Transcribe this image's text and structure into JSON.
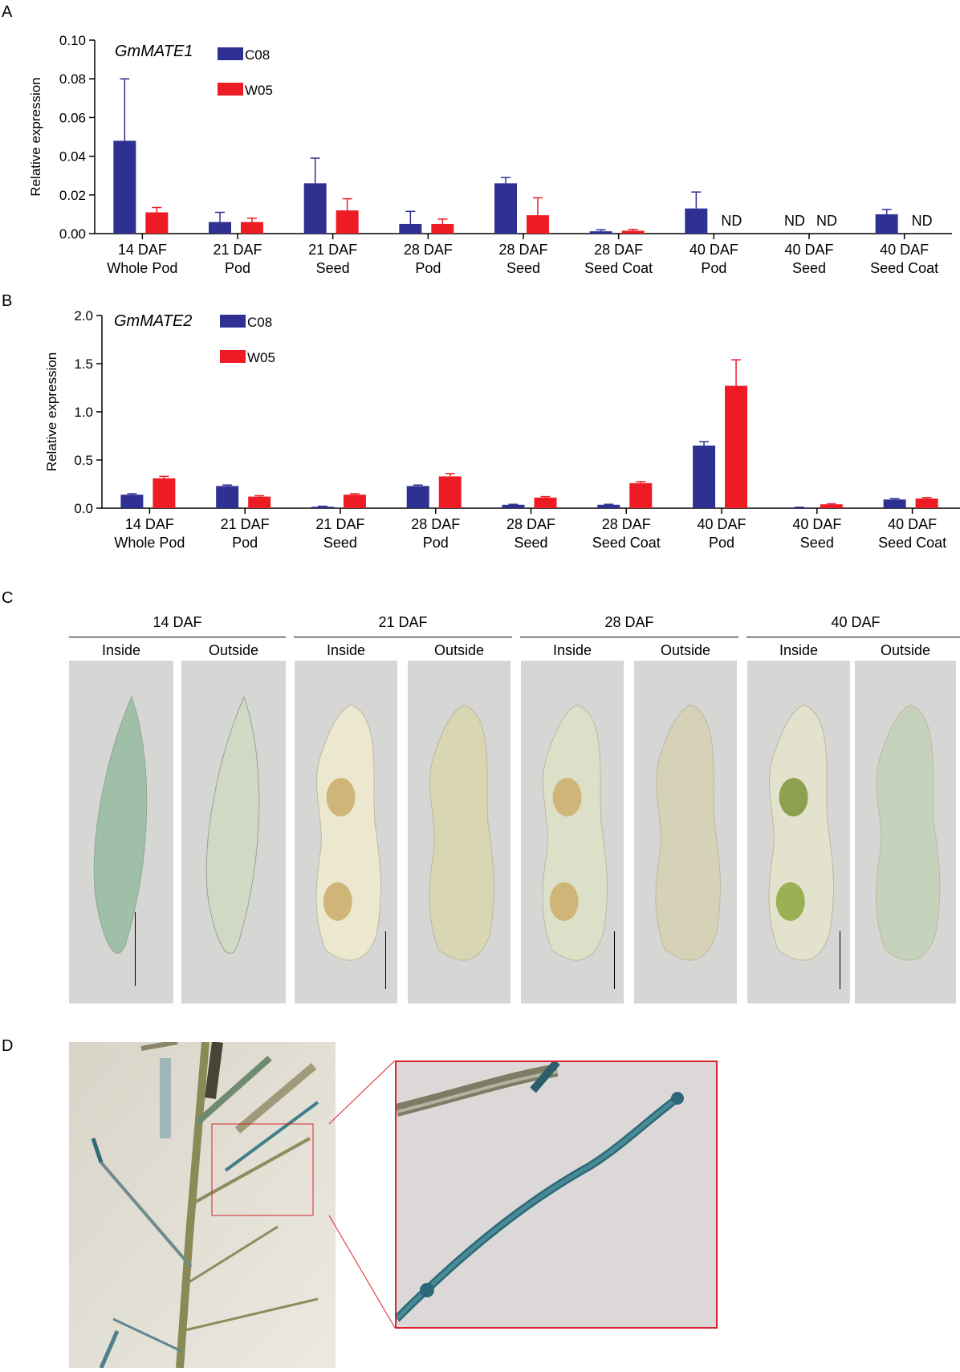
{
  "panels": {
    "a": "A",
    "b": "B",
    "c": "C",
    "d": "D"
  },
  "chart_data": [
    {
      "type": "bar",
      "gene_label": "GmMATE1",
      "ylabel": "Relative expression",
      "xlabel": "",
      "ylim": [
        0,
        0.1
      ],
      "yticks": [
        "0.00",
        "0.02",
        "0.04",
        "0.06",
        "0.08",
        "0.10"
      ],
      "categories": [
        [
          "14 DAF",
          "Whole Pod"
        ],
        [
          "21 DAF",
          "Pod"
        ],
        [
          "21 DAF",
          "Seed"
        ],
        [
          "28 DAF",
          "Pod"
        ],
        [
          "28 DAF",
          "Seed"
        ],
        [
          "28 DAF",
          "Seed Coat"
        ],
        [
          "40 DAF",
          "Pod"
        ],
        [
          "40 DAF",
          "Seed"
        ],
        [
          "40 DAF",
          "Seed Coat"
        ]
      ],
      "series": [
        {
          "name": "C08",
          "color": "#2e3192",
          "values": [
            0.048,
            0.006,
            0.026,
            0.005,
            0.026,
            0.0012,
            0.013,
            null,
            0.01
          ],
          "errors": [
            0.032,
            0.005,
            0.013,
            0.0065,
            0.003,
            0.0008,
            0.0085,
            null,
            0.0025
          ],
          "labels": [
            null,
            null,
            null,
            null,
            null,
            null,
            null,
            "ND",
            null
          ]
        },
        {
          "name": "W05",
          "color": "#ed1c24",
          "values": [
            0.011,
            0.006,
            0.012,
            0.005,
            0.0095,
            0.0015,
            null,
            null,
            null
          ],
          "errors": [
            0.0025,
            0.002,
            0.006,
            0.0025,
            0.009,
            0.0007,
            null,
            null,
            null
          ],
          "labels": [
            null,
            null,
            null,
            null,
            null,
            null,
            "ND",
            "ND",
            "ND"
          ]
        }
      ],
      "legend": "top-left"
    },
    {
      "type": "bar",
      "gene_label": "GmMATE2",
      "ylabel": "Relative expression",
      "xlabel": "",
      "ylim": [
        0,
        2.0
      ],
      "yticks": [
        "0.0",
        "0.5",
        "1.0",
        "1.5",
        "2.0"
      ],
      "categories": [
        [
          "14 DAF",
          "Whole Pod"
        ],
        [
          "21 DAF",
          "Pod"
        ],
        [
          "21 DAF",
          "Seed"
        ],
        [
          "28 DAF",
          "Pod"
        ],
        [
          "28 DAF",
          "Seed"
        ],
        [
          "28 DAF",
          "Seed Coat"
        ],
        [
          "40 DAF",
          "Pod"
        ],
        [
          "40 DAF",
          "Seed"
        ],
        [
          "40 DAF",
          "Seed Coat"
        ]
      ],
      "series": [
        {
          "name": "C08",
          "color": "#2e3192",
          "values": [
            0.14,
            0.23,
            0.015,
            0.23,
            0.035,
            0.035,
            0.65,
            0.008,
            0.09
          ],
          "errors": [
            0.01,
            0.01,
            0.005,
            0.01,
            0.005,
            0.005,
            0.04,
            0.002,
            0.01
          ]
        },
        {
          "name": "W05",
          "color": "#ed1c24",
          "values": [
            0.31,
            0.12,
            0.14,
            0.33,
            0.11,
            0.26,
            1.27,
            0.04,
            0.1
          ],
          "errors": [
            0.02,
            0.01,
            0.01,
            0.03,
            0.01,
            0.015,
            0.27,
            0.005,
            0.01
          ]
        }
      ],
      "legend": "top-left"
    }
  ],
  "panel_c": {
    "groups": [
      {
        "stage": "14 DAF",
        "sides": [
          "Inside",
          "Outside"
        ]
      },
      {
        "stage": "21 DAF",
        "sides": [
          "Inside",
          "Outside"
        ]
      },
      {
        "stage": "28 DAF",
        "sides": [
          "Inside",
          "Outside"
        ]
      },
      {
        "stage": "40 DAF",
        "sides": [
          "Inside",
          "Outside"
        ]
      }
    ]
  },
  "colors": {
    "c08": "#2e3192",
    "w05": "#ed1c24",
    "inset_box": "#d9232e"
  }
}
